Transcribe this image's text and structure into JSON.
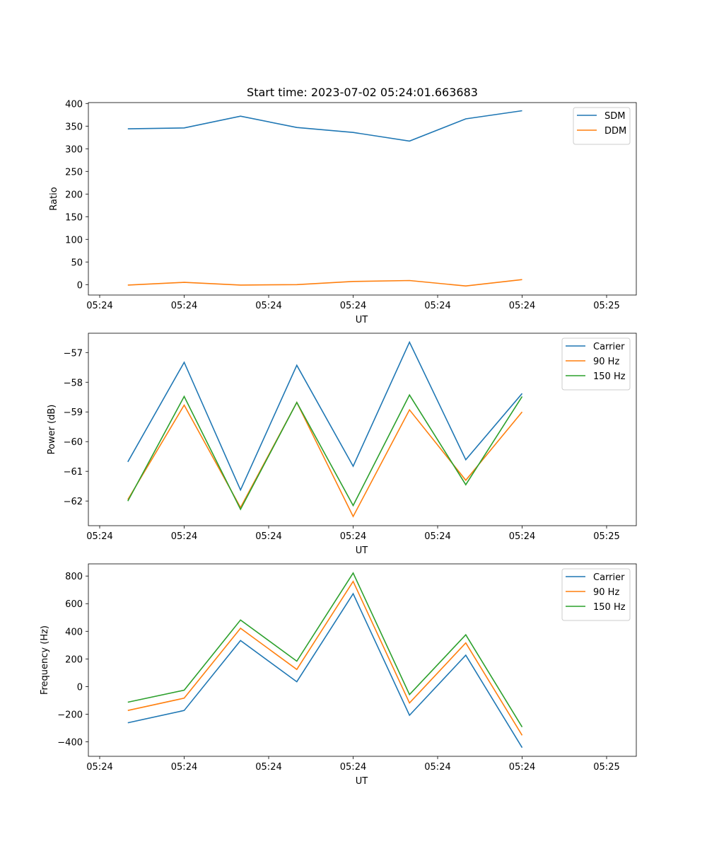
{
  "figure": {
    "title": "Start time: 2023-07-02 05:24:01.663683"
  },
  "chart_data": [
    {
      "type": "line",
      "ylabel": "Ratio",
      "xlabel": "UT",
      "x_ticks": [
        "05:24",
        "05:24",
        "05:24",
        "05:24",
        "05:24",
        "05:24",
        "05:24"
      ],
      "y_ticks": [
        0,
        50,
        100,
        150,
        200,
        250,
        300,
        350,
        400
      ],
      "ylim": [
        -23,
        402
      ],
      "x_points": [
        1,
        2,
        3,
        4,
        5,
        6,
        7,
        8
      ],
      "xlim": [
        0,
        9.5
      ],
      "legend": "top-right",
      "series": [
        {
          "name": "SDM",
          "color": "#1f77b4",
          "values": [
            344,
            346,
            372,
            347,
            336,
            317,
            366,
            384
          ]
        },
        {
          "name": "DDM",
          "color": "#ff7f0e",
          "values": [
            -1,
            5,
            -1,
            0,
            7,
            9,
            -3,
            11
          ]
        }
      ]
    },
    {
      "type": "line",
      "ylabel": "Power (dB)",
      "xlabel": "UT",
      "x_ticks": [
        "05:24",
        "05:24",
        "05:24",
        "05:24",
        "05:24",
        "05:24",
        "05:24"
      ],
      "y_ticks": [
        -62,
        -61,
        -60,
        -59,
        -58,
        -57
      ],
      "ylim": [
        -62.83,
        -56.35
      ],
      "x_points": [
        1,
        2,
        3,
        4,
        5,
        6,
        7,
        8
      ],
      "xlim": [
        0,
        9.5
      ],
      "legend": "top-right",
      "series": [
        {
          "name": "Carrier",
          "color": "#1f77b4",
          "values": [
            -60.68,
            -57.33,
            -61.63,
            -57.43,
            -60.83,
            -56.65,
            -60.61,
            -58.38
          ]
        },
        {
          "name": "90 Hz",
          "color": "#ff7f0e",
          "values": [
            -61.95,
            -58.77,
            -62.22,
            -58.68,
            -62.52,
            -58.93,
            -61.3,
            -59.0
          ]
        },
        {
          "name": "150 Hz",
          "color": "#2ca02c",
          "values": [
            -62.0,
            -58.48,
            -62.28,
            -58.68,
            -62.15,
            -58.43,
            -61.45,
            -58.48
          ]
        }
      ]
    },
    {
      "type": "line",
      "ylabel": "Frequency (Hz)",
      "xlabel": "UT",
      "x_ticks": [
        "05:24",
        "05:24",
        "05:24",
        "05:24",
        "05:24",
        "05:24",
        "05:24"
      ],
      "y_ticks": [
        -400,
        -200,
        0,
        200,
        400,
        600,
        800
      ],
      "ylim": [
        -505,
        888
      ],
      "x_points": [
        1,
        2,
        3,
        4,
        5,
        6,
        7,
        8
      ],
      "xlim": [
        0,
        9.5
      ],
      "legend": "top-right",
      "series": [
        {
          "name": "Carrier",
          "color": "#1f77b4",
          "values": [
            -262,
            -173,
            333,
            35,
            672,
            -208,
            227,
            -442
          ]
        },
        {
          "name": "90 Hz",
          "color": "#ff7f0e",
          "values": [
            -173,
            -84,
            422,
            124,
            761,
            -119,
            316,
            -353
          ]
        },
        {
          "name": "150 Hz",
          "color": "#2ca02c",
          "values": [
            -113,
            -26,
            482,
            184,
            822,
            -58,
            375,
            -293
          ]
        }
      ]
    }
  ]
}
